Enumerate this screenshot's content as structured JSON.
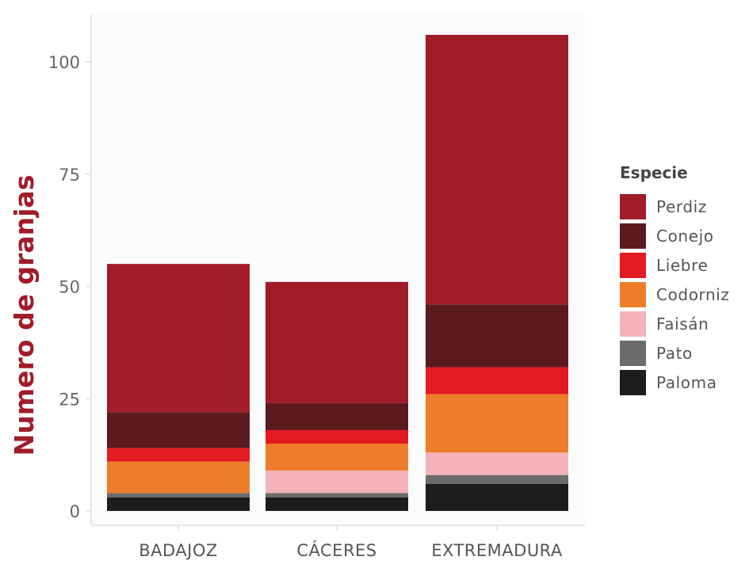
{
  "chart_data": {
    "type": "bar",
    "stacked": true,
    "categories": [
      "BADAJOZ",
      "CÁCERES",
      "EXTREMADURA"
    ],
    "series": [
      {
        "name": "Paloma",
        "color": "#1c1c1c",
        "values": [
          3,
          3,
          6
        ]
      },
      {
        "name": "Pato",
        "color": "#6b6b6b",
        "values": [
          1,
          1,
          2
        ]
      },
      {
        "name": "Faisán",
        "color": "#f4b3b8",
        "values": [
          0,
          5,
          5
        ]
      },
      {
        "name": "Codorniz",
        "color": "#ee7d2b",
        "values": [
          7,
          6,
          13
        ]
      },
      {
        "name": "Liebre",
        "color": "#e31a22",
        "values": [
          3,
          3,
          6
        ]
      },
      {
        "name": "Conejo",
        "color": "#5b1a1e",
        "values": [
          8,
          6,
          14
        ]
      },
      {
        "name": "Perdiz",
        "color": "#a01c28",
        "values": [
          33,
          27,
          60
        ]
      }
    ],
    "legend_order": [
      "Perdiz",
      "Conejo",
      "Liebre",
      "Codorniz",
      "Faisán",
      "Pato",
      "Paloma"
    ],
    "legend_title": "Especie",
    "legend_position": "right",
    "xlabel": "",
    "ylabel": "Numero de granjas",
    "ylim": [
      0,
      108
    ],
    "yticks": [
      0,
      25,
      50,
      75,
      100
    ],
    "grid": false,
    "background": "#fafcfc",
    "axis_color": "#e6e6e6"
  }
}
